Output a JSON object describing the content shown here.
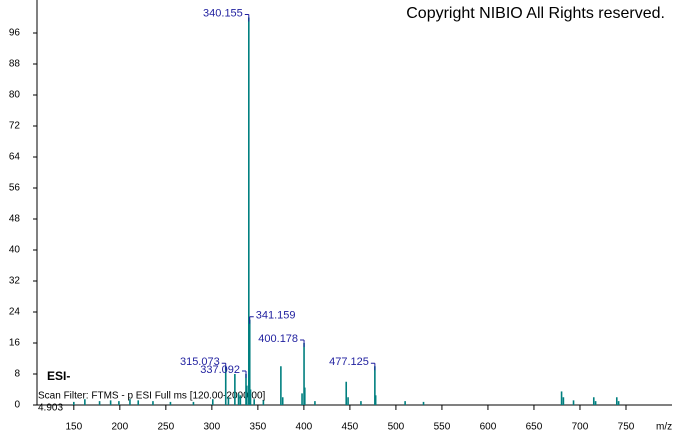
{
  "chart_data": {
    "type": "bar",
    "title": "Copyright NIBIO All Rights reserved.",
    "ionization": "ESI-",
    "scan_filter": "Scan Filter: FTMS - p ESI Full ms [120.00-2000.00]",
    "retention_time": "4.903",
    "x_label": "m/z",
    "color": "#007f7f",
    "label_color": "#1f1f9f",
    "x": [
      150,
      162,
      178,
      190,
      199,
      211,
      220,
      236,
      255,
      280,
      301,
      315.073,
      318,
      325,
      329,
      331,
      337.092,
      338,
      340.155,
      341.159,
      342,
      346,
      356,
      375,
      377,
      398,
      400.178,
      401,
      412,
      446,
      448,
      462,
      477.125,
      478,
      510,
      530,
      680,
      682,
      693,
      715,
      717,
      740,
      742
    ],
    "values": [
      0.8,
      1.5,
      1,
      1.2,
      1,
      1.5,
      1.2,
      1,
      0.8,
      0.8,
      1.5,
      10,
      2,
      8,
      3,
      2.5,
      8,
      5,
      100,
      22,
      4,
      1.5,
      1.2,
      10,
      2,
      3,
      16,
      4.5,
      1,
      6,
      2,
      1,
      10,
      2.5,
      1,
      0.8,
      3.5,
      2,
      1.2,
      2,
      1,
      2,
      1
    ],
    "x_labels": [
      null,
      null,
      null,
      null,
      null,
      null,
      null,
      null,
      null,
      null,
      null,
      "315.073",
      null,
      null,
      null,
      null,
      "337.092",
      null,
      "340.155",
      "341.159",
      null,
      null,
      null,
      null,
      null,
      null,
      "400.178",
      null,
      null,
      null,
      null,
      null,
      "477.125",
      null,
      null,
      null,
      null,
      null,
      null,
      null,
      null,
      null,
      null
    ],
    "xlim": [
      110,
      800
    ],
    "ylim": [
      0,
      104
    ],
    "xticks": [
      150,
      200,
      250,
      300,
      350,
      400,
      450,
      500,
      550,
      600,
      650,
      700,
      750
    ],
    "yticks": [
      0,
      8,
      16,
      24,
      32,
      40,
      48,
      56,
      64,
      72,
      80,
      88,
      96
    ]
  }
}
